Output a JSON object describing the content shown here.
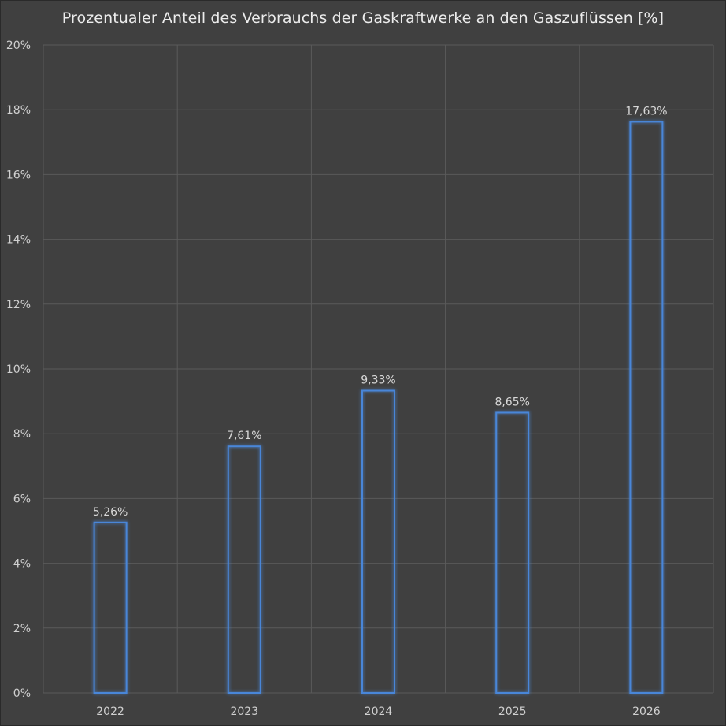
{
  "chart_data": {
    "type": "bar",
    "title": "Prozentualer Anteil des Verbrauchs der Gaskraftwerke an den Gaszuflüssen [%]",
    "categories": [
      "2022",
      "2023",
      "2024",
      "2025",
      "2026"
    ],
    "values": [
      5.26,
      7.61,
      9.33,
      8.65,
      17.63
    ],
    "data_labels": [
      "5,26%",
      "7,61%",
      "9,33%",
      "8,65%",
      "17,63%"
    ],
    "ylim": [
      0,
      20
    ],
    "y_ticks": [
      0,
      2,
      4,
      6,
      8,
      10,
      12,
      14,
      16,
      18,
      20
    ],
    "y_tick_labels": [
      "0%",
      "2%",
      "4%",
      "6%",
      "8%",
      "10%",
      "12%",
      "14%",
      "16%",
      "18%",
      "20%"
    ],
    "grid": true,
    "colors": {
      "bar_outline": "#4a86d8",
      "grid": "#5a5a5a",
      "background": "#404040"
    }
  }
}
